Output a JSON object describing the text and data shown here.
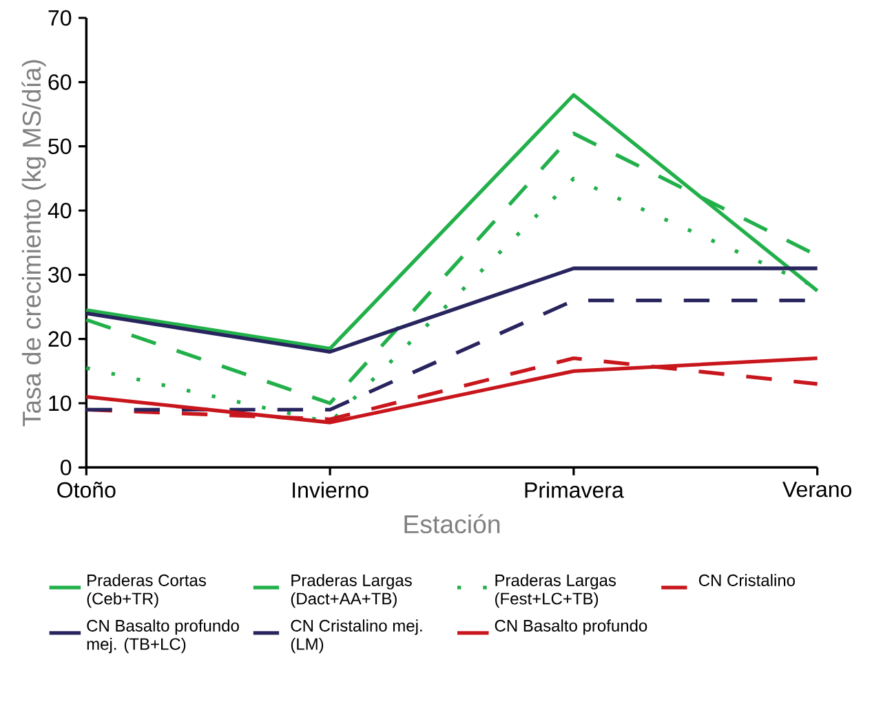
{
  "chart_data": {
    "type": "line",
    "xlabel": "Estación",
    "ylabel": "Tasa de crecimiento (kg MS/día)",
    "categories": [
      "Otoño",
      "Invierno",
      "Primavera",
      "Verano"
    ],
    "ylim": [
      0,
      70
    ],
    "yticks": [
      0,
      10,
      20,
      30,
      40,
      50,
      60,
      70
    ],
    "grid": false,
    "legend": "bottom",
    "marker": "none",
    "series": [
      {
        "name": "Praderas Cortas (Ceb+TR)",
        "color": "#22b04b",
        "line_style": "solid",
        "values": [
          24.5,
          18.5,
          58,
          27.5
        ]
      },
      {
        "name": "Praderas Largas (Dact+AA+TB)",
        "color": "#22b04b",
        "line_style": "dashed",
        "values": [
          23,
          10,
          52,
          33
        ]
      },
      {
        "name": "Praderas Largas (Fest+LC+TB)",
        "color": "#22b04b",
        "line_style": "dotted",
        "values": [
          15.5,
          7,
          45,
          28
        ]
      },
      {
        "name": "CN Cristalino",
        "color": "#c8161d",
        "line_style": "dashed",
        "values": [
          9,
          7.5,
          17,
          13
        ]
      },
      {
        "name": "CN Basalto profundo mej. (TB+LC)",
        "color": "#28245e",
        "line_style": "solid",
        "values": [
          24,
          18,
          31,
          31
        ]
      },
      {
        "name": "CN Cristalino mej. (LM)",
        "color": "#28245e",
        "line_style": "dashed",
        "values": [
          9,
          9,
          26,
          26
        ]
      },
      {
        "name": "CN Basalto profundo",
        "color": "#c8161d",
        "line_style": "solid",
        "values": [
          11,
          7,
          15,
          17
        ]
      }
    ]
  }
}
